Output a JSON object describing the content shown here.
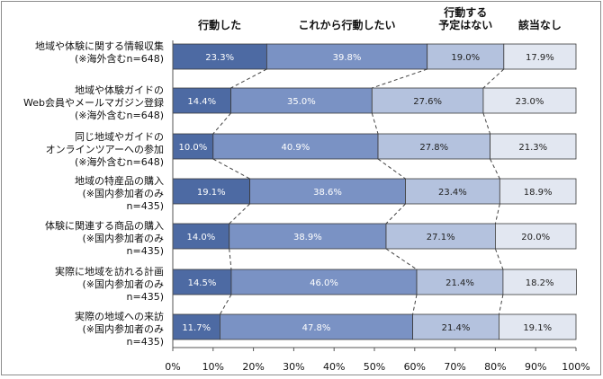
{
  "chart_data": {
    "type": "bar",
    "stacked": "100%",
    "orientation": "horizontal",
    "series": [
      {
        "name": "行動した",
        "color": "#4d6aa3",
        "label_color": "#ffffff",
        "values": [
          23.3,
          14.4,
          10.0,
          19.1,
          14.0,
          14.5,
          11.7
        ]
      },
      {
        "name": "これから行動したい",
        "color": "#7a92c4",
        "label_color": "#ffffff",
        "values": [
          39.8,
          35.0,
          40.9,
          38.6,
          38.9,
          46.0,
          47.8
        ]
      },
      {
        "name": "行動する\n予定はない",
        "color": "#b4c2de",
        "label_color": "#222222",
        "values": [
          19.0,
          27.6,
          27.8,
          23.4,
          27.1,
          21.4,
          21.4
        ]
      },
      {
        "name": "該当なし",
        "color": "#e2e7f1",
        "label_color": "#222222",
        "values": [
          17.9,
          23.0,
          21.3,
          18.9,
          20.0,
          18.2,
          19.1
        ]
      }
    ],
    "categories": [
      "地域や体験に関する情報収集\n(※海外含むn=648)",
      "地域や体験ガイドの\nWeb会員やメールマガジン登録\n(※海外含むn=648)",
      "同じ地域やガイドの\nオンラインツアーへの参加\n(※海外含むn=648)",
      "地域の特産品の購入\n(※国内参加者のみ\nn=435)",
      "体験に関連する商品の購入\n(※国内参加者のみ\nn=435)",
      "実際に地域を訪れる計画\n(※国内参加者のみ\nn=435)",
      "実際の地域への来訪\n(※国内参加者のみ\nn=435)"
    ],
    "xlim": [
      0,
      100
    ],
    "x_ticks": [
      "0%",
      "10%",
      "20%",
      "30%",
      "40%",
      "50%",
      "60%",
      "70%",
      "80%",
      "90%",
      "100%"
    ],
    "legend_position": "top",
    "grid": false,
    "connector_lines": true,
    "data_label_format": "0.0%"
  }
}
